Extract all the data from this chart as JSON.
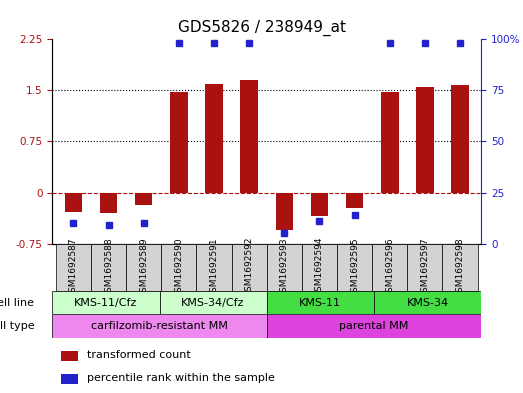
{
  "title": "GDS5826 / 238949_at",
  "samples": [
    "GSM1692587",
    "GSM1692588",
    "GSM1692589",
    "GSM1692590",
    "GSM1692591",
    "GSM1692592",
    "GSM1692593",
    "GSM1692594",
    "GSM1692595",
    "GSM1692596",
    "GSM1692597",
    "GSM1692598"
  ],
  "transformed_counts": [
    -0.28,
    -0.3,
    -0.18,
    1.48,
    1.6,
    1.65,
    -0.55,
    -0.35,
    -0.22,
    1.48,
    1.55,
    1.58
  ],
  "percentile_ranks": [
    10,
    9,
    10,
    98,
    98,
    98,
    5,
    11,
    14,
    98,
    98,
    98
  ],
  "ylim_left": [
    -0.75,
    2.25
  ],
  "ylim_right": [
    0,
    100
  ],
  "yticks_left": [
    -0.75,
    0,
    0.75,
    1.5,
    2.25
  ],
  "yticks_right": [
    0,
    25,
    50,
    75,
    100
  ],
  "hlines": [
    0.75,
    1.5
  ],
  "zero_line": 0,
  "bar_color": "#aa1111",
  "dot_color": "#2222cc",
  "cell_line_groups": [
    {
      "label": "KMS-11/Cfz",
      "indices": [
        0,
        1,
        2
      ],
      "color": "#ccffcc"
    },
    {
      "label": "KMS-34/Cfz",
      "indices": [
        3,
        4,
        5
      ],
      "color": "#ccffcc"
    },
    {
      "label": "KMS-11",
      "indices": [
        6,
        7,
        8
      ],
      "color": "#44dd44"
    },
    {
      "label": "KMS-34",
      "indices": [
        9,
        10,
        11
      ],
      "color": "#44dd44"
    }
  ],
  "cell_type_groups": [
    {
      "label": "carfilzomib-resistant MM",
      "indices": [
        0,
        5
      ],
      "color": "#ee88ee"
    },
    {
      "label": "parental MM",
      "indices": [
        6,
        11
      ],
      "color": "#dd44dd"
    }
  ],
  "cell_line_label": "cell line",
  "cell_type_label": "cell type",
  "legend_items": [
    {
      "color": "#aa1111",
      "label": "transformed count"
    },
    {
      "color": "#2222cc",
      "label": "percentile rank within the sample"
    }
  ],
  "background_color": "#ffffff",
  "grid_color": "#000000",
  "title_fontsize": 11,
  "tick_fontsize": 7.5,
  "bar_width": 0.5
}
